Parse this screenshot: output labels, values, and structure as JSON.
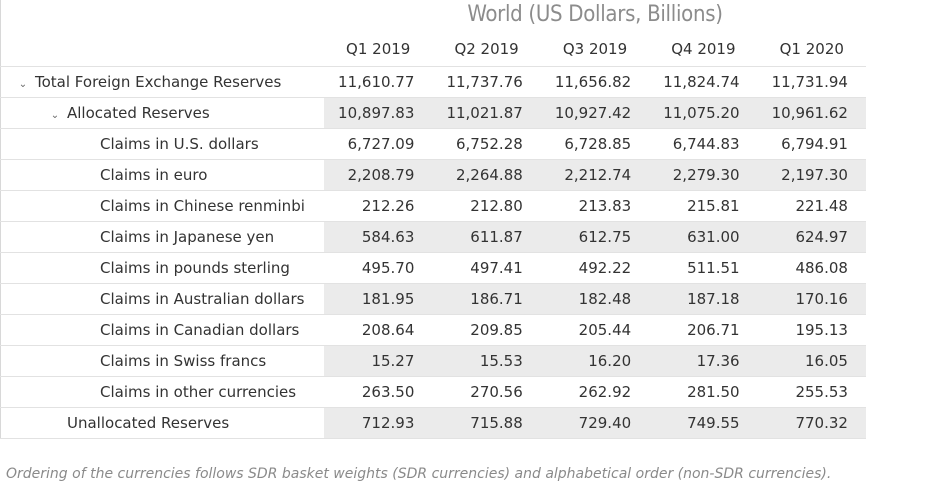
{
  "title": "World (US Dollars, Billions)",
  "columns": [
    "Q1 2019",
    "Q2 2019",
    "Q3 2019",
    "Q4 2019",
    "Q1 2020"
  ],
  "rows": [
    {
      "label": "Total Foreign Exchange Reserves",
      "values": [
        "11,610.77",
        "11,737.76",
        "11,656.82",
        "11,824.74",
        "11,731.94"
      ]
    },
    {
      "label": "Allocated Reserves",
      "values": [
        "10,897.83",
        "11,021.87",
        "10,927.42",
        "11,075.20",
        "10,961.62"
      ]
    },
    {
      "label": "Claims in U.S. dollars",
      "values": [
        "6,727.09",
        "6,752.28",
        "6,728.85",
        "6,744.83",
        "6,794.91"
      ]
    },
    {
      "label": "Claims in euro",
      "values": [
        "2,208.79",
        "2,264.88",
        "2,212.74",
        "2,279.30",
        "2,197.30"
      ]
    },
    {
      "label": "Claims in Chinese renminbi",
      "values": [
        "212.26",
        "212.80",
        "213.83",
        "215.81",
        "221.48"
      ]
    },
    {
      "label": "Claims in Japanese yen",
      "values": [
        "584.63",
        "611.87",
        "612.75",
        "631.00",
        "624.97"
      ]
    },
    {
      "label": "Claims in pounds sterling",
      "values": [
        "495.70",
        "497.41",
        "492.22",
        "511.51",
        "486.08"
      ]
    },
    {
      "label": "Claims in Australian dollars",
      "values": [
        "181.95",
        "186.71",
        "182.48",
        "187.18",
        "170.16"
      ]
    },
    {
      "label": "Claims in Canadian dollars",
      "values": [
        "208.64",
        "209.85",
        "205.44",
        "206.71",
        "195.13"
      ]
    },
    {
      "label": "Claims in Swiss francs",
      "values": [
        "15.27",
        "15.53",
        "16.20",
        "17.36",
        "16.05"
      ]
    },
    {
      "label": "Claims in other currencies",
      "values": [
        "263.50",
        "270.56",
        "262.92",
        "281.50",
        "255.53"
      ]
    },
    {
      "label": "Unallocated Reserves",
      "values": [
        "712.93",
        "715.88",
        "729.40",
        "749.55",
        "770.32"
      ]
    }
  ],
  "footnote": "Ordering of the currencies follows SDR basket weights (SDR currencies) and alphabetical order (non-SDR currencies)."
}
